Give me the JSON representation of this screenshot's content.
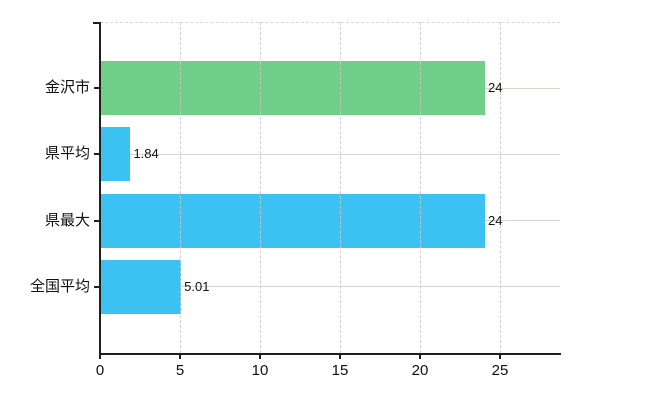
{
  "chart_data": {
    "type": "bar",
    "orientation": "horizontal",
    "title": "",
    "xlabel": "",
    "ylabel": "",
    "categories": [
      "金沢市",
      "県平均",
      "県最大",
      "全国平均"
    ],
    "values": [
      24,
      1.84,
      24,
      5.01
    ],
    "value_labels": [
      "24",
      "1.84",
      "24",
      "5.01"
    ],
    "bar_colors": [
      "#6fce87",
      "#3cc1f3",
      "#3cc1f3",
      "#3cc1f3"
    ],
    "xlim": [
      0,
      28.75
    ],
    "x_ticks": [
      0,
      5,
      10,
      15,
      20,
      25
    ],
    "x_tick_labels": [
      "0",
      "5",
      "10",
      "15",
      "20",
      "25"
    ],
    "grid": true,
    "legend": false
  },
  "colors": {
    "background": "#ffffff",
    "bar_green": "#6fce87",
    "bar_blue": "#3cc1f3",
    "axis": "#1f1f1f",
    "grid_vertical": "#c9c9c9",
    "grid_horizontal": "#cfd9cf",
    "plot_border_dashed": "#d9d9d9",
    "text": "#111111"
  }
}
